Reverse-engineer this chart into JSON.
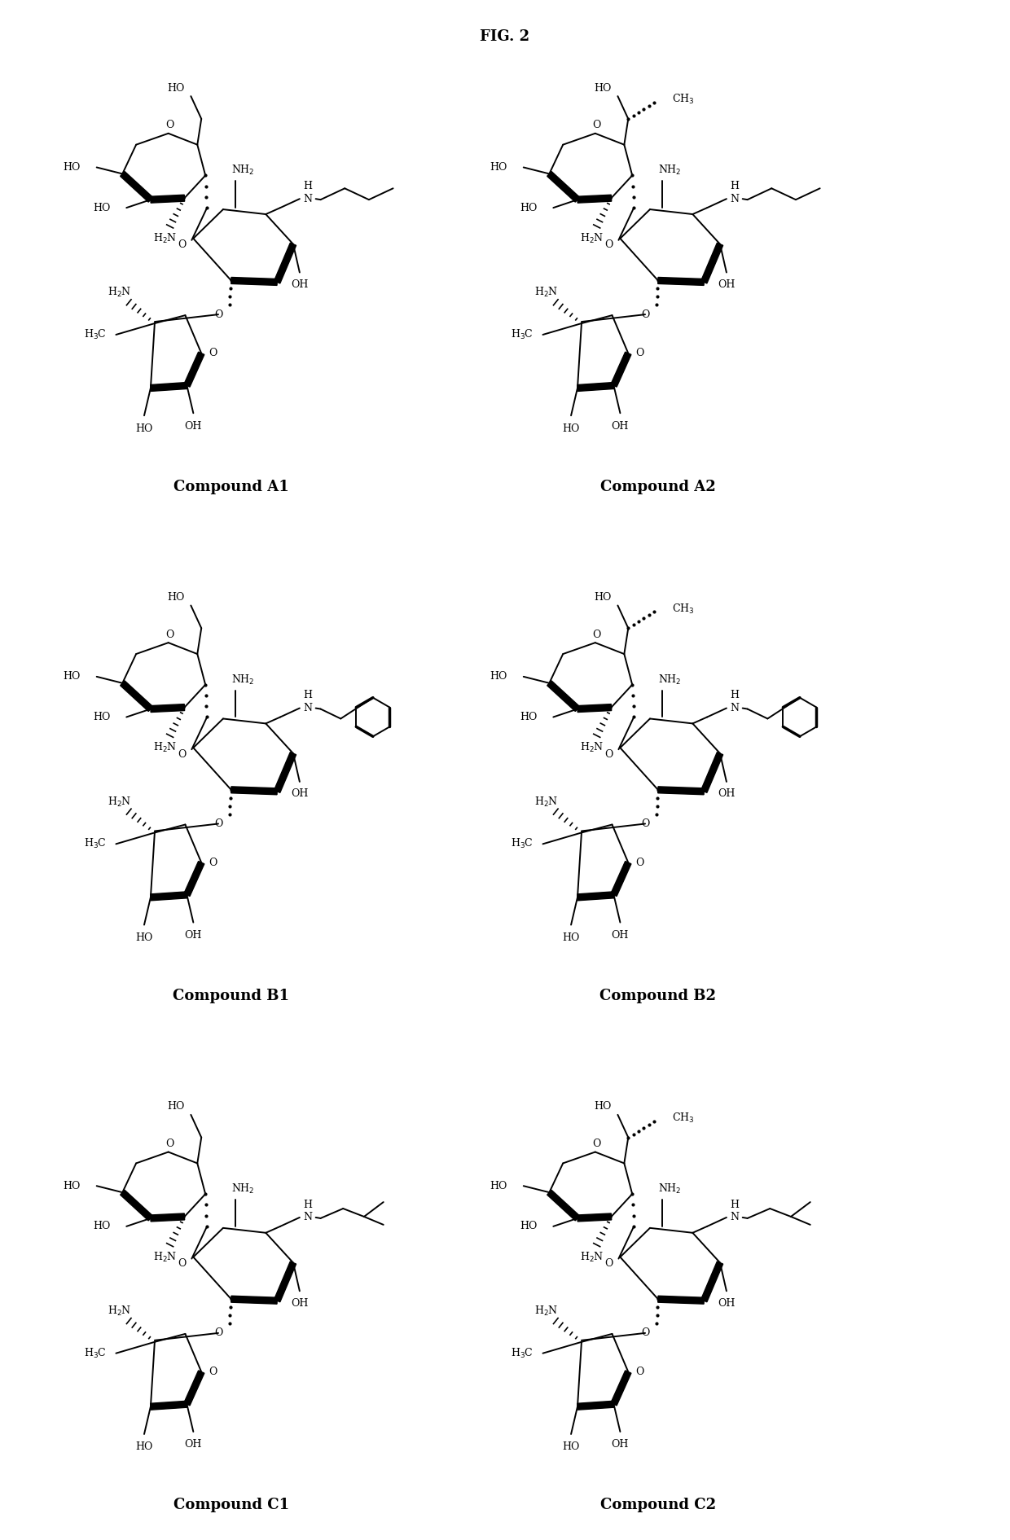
{
  "title": "FIG. 2",
  "title_fontsize": 13,
  "title_fontweight": "bold",
  "background_color": "#ffffff",
  "compounds": [
    {
      "label": "Compound A1",
      "col": 0,
      "row": 0
    },
    {
      "label": "Compound A2",
      "col": 1,
      "row": 0
    },
    {
      "label": "Compound B1",
      "col": 0,
      "row": 1
    },
    {
      "label": "Compound B2",
      "col": 1,
      "row": 1
    },
    {
      "label": "Compound C1",
      "col": 0,
      "row": 2
    },
    {
      "label": "Compound C2",
      "col": 1,
      "row": 2
    }
  ],
  "figsize": [
    12.4,
    18.91
  ],
  "dpi": 100,
  "label_fontsize": 13
}
